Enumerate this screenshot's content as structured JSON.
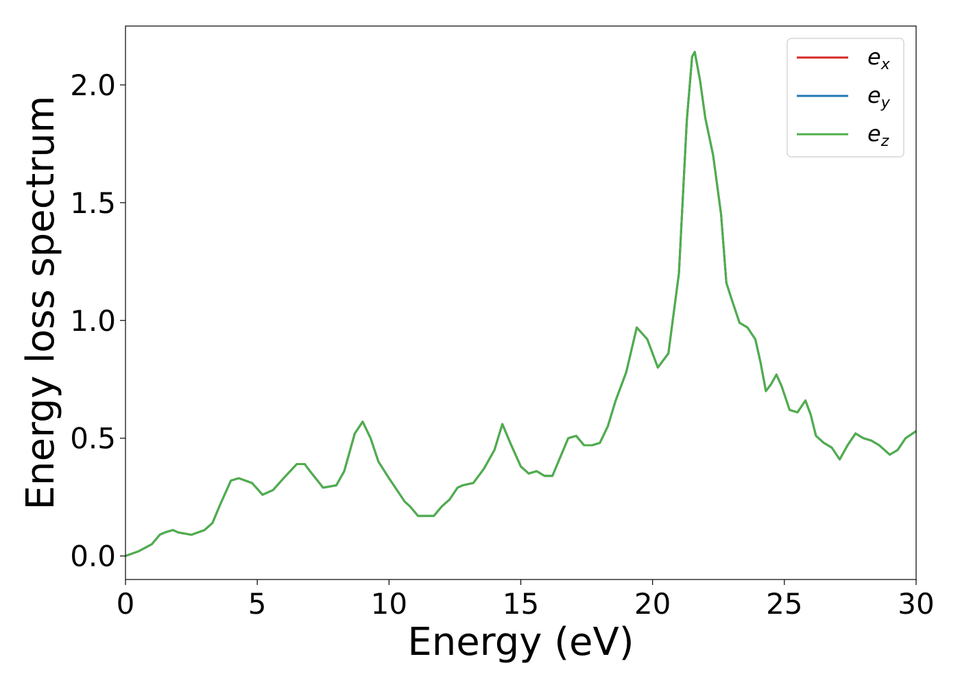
{
  "chart_data": {
    "type": "line",
    "xlabel": "Energy (eV)",
    "ylabel": "Energy loss spectrum",
    "xlim": [
      0,
      30
    ],
    "ylim": [
      -0.1,
      2.25
    ],
    "xticks": [
      0,
      5,
      10,
      15,
      20,
      25,
      30
    ],
    "xtick_labels": [
      "0",
      "5",
      "10",
      "15",
      "20",
      "25",
      "30"
    ],
    "yticks": [
      0.0,
      0.5,
      1.0,
      1.5,
      2.0
    ],
    "ytick_labels": [
      "0.0",
      "0.5",
      "1.0",
      "1.5",
      "2.0"
    ],
    "grid": false,
    "legend_position": "top-right",
    "x": [
      0,
      0.5,
      1.0,
      1.3,
      1.5,
      1.8,
      2.0,
      2.5,
      3.0,
      3.3,
      3.6,
      4.0,
      4.3,
      4.8,
      5.2,
      5.6,
      6.0,
      6.5,
      6.8,
      7.0,
      7.5,
      8.0,
      8.3,
      8.7,
      9.0,
      9.3,
      9.6,
      10.0,
      10.3,
      10.6,
      10.8,
      11.1,
      11.4,
      11.7,
      12.0,
      12.3,
      12.6,
      12.8,
      13.2,
      13.6,
      14.0,
      14.3,
      14.6,
      15.0,
      15.3,
      15.6,
      15.9,
      16.2,
      16.5,
      16.8,
      17.1,
      17.4,
      17.7,
      18.0,
      18.3,
      18.6,
      19.0,
      19.4,
      19.8,
      20.2,
      20.6,
      21.0,
      21.3,
      21.5,
      21.6,
      21.8,
      22.0,
      22.3,
      22.6,
      22.8,
      23.0,
      23.3,
      23.6,
      23.9,
      24.1,
      24.3,
      24.5,
      24.7,
      24.9,
      25.2,
      25.5,
      25.8,
      26.0,
      26.2,
      26.5,
      26.8,
      27.1,
      27.4,
      27.7,
      28.0,
      28.3,
      28.6,
      29.0,
      29.3,
      29.6,
      30.0
    ],
    "series": [
      {
        "name": "e_x",
        "color": "#d62728",
        "y": [
          0,
          0.02,
          0.05,
          0.09,
          0.1,
          0.11,
          0.1,
          0.09,
          0.11,
          0.14,
          0.22,
          0.32,
          0.33,
          0.31,
          0.26,
          0.28,
          0.33,
          0.39,
          0.39,
          0.36,
          0.29,
          0.3,
          0.36,
          0.52,
          0.57,
          0.5,
          0.4,
          0.33,
          0.28,
          0.23,
          0.21,
          0.17,
          0.17,
          0.17,
          0.21,
          0.24,
          0.29,
          0.3,
          0.31,
          0.37,
          0.45,
          0.56,
          0.48,
          0.38,
          0.35,
          0.36,
          0.34,
          0.34,
          0.42,
          0.5,
          0.51,
          0.47,
          0.47,
          0.48,
          0.55,
          0.66,
          0.78,
          0.97,
          0.92,
          0.8,
          0.86,
          1.2,
          1.85,
          2.12,
          2.14,
          2.02,
          1.86,
          1.7,
          1.45,
          1.16,
          1.09,
          0.99,
          0.97,
          0.92,
          0.82,
          0.7,
          0.73,
          0.77,
          0.72,
          0.62,
          0.61,
          0.66,
          0.6,
          0.51,
          0.48,
          0.46,
          0.41,
          0.47,
          0.52,
          0.5,
          0.49,
          0.47,
          0.43,
          0.45,
          0.5,
          0.53
        ]
      },
      {
        "name": "e_y",
        "color": "#1f77b4",
        "y": [
          0,
          0.02,
          0.05,
          0.09,
          0.1,
          0.11,
          0.1,
          0.09,
          0.11,
          0.14,
          0.22,
          0.32,
          0.33,
          0.31,
          0.26,
          0.28,
          0.33,
          0.39,
          0.39,
          0.36,
          0.29,
          0.3,
          0.36,
          0.52,
          0.57,
          0.5,
          0.4,
          0.33,
          0.28,
          0.23,
          0.21,
          0.17,
          0.17,
          0.17,
          0.21,
          0.24,
          0.29,
          0.3,
          0.31,
          0.37,
          0.45,
          0.56,
          0.48,
          0.38,
          0.35,
          0.36,
          0.34,
          0.34,
          0.42,
          0.5,
          0.51,
          0.47,
          0.47,
          0.48,
          0.55,
          0.66,
          0.78,
          0.97,
          0.92,
          0.8,
          0.86,
          1.2,
          1.85,
          2.12,
          2.14,
          2.02,
          1.86,
          1.7,
          1.45,
          1.16,
          1.09,
          0.99,
          0.97,
          0.92,
          0.82,
          0.7,
          0.73,
          0.77,
          0.72,
          0.62,
          0.61,
          0.66,
          0.6,
          0.51,
          0.48,
          0.46,
          0.41,
          0.47,
          0.52,
          0.5,
          0.49,
          0.47,
          0.43,
          0.45,
          0.5,
          0.53
        ]
      },
      {
        "name": "e_z",
        "color": "#4daf4a",
        "y": [
          0,
          0.02,
          0.05,
          0.09,
          0.1,
          0.11,
          0.1,
          0.09,
          0.11,
          0.14,
          0.22,
          0.32,
          0.33,
          0.31,
          0.26,
          0.28,
          0.33,
          0.39,
          0.39,
          0.36,
          0.29,
          0.3,
          0.36,
          0.52,
          0.57,
          0.5,
          0.4,
          0.33,
          0.28,
          0.23,
          0.21,
          0.17,
          0.17,
          0.17,
          0.21,
          0.24,
          0.29,
          0.3,
          0.31,
          0.37,
          0.45,
          0.56,
          0.48,
          0.38,
          0.35,
          0.36,
          0.34,
          0.34,
          0.42,
          0.5,
          0.51,
          0.47,
          0.47,
          0.48,
          0.55,
          0.66,
          0.78,
          0.97,
          0.92,
          0.8,
          0.86,
          1.2,
          1.85,
          2.12,
          2.14,
          2.02,
          1.86,
          1.7,
          1.45,
          1.16,
          1.09,
          0.99,
          0.97,
          0.92,
          0.82,
          0.7,
          0.73,
          0.77,
          0.72,
          0.62,
          0.61,
          0.66,
          0.6,
          0.51,
          0.48,
          0.46,
          0.41,
          0.47,
          0.52,
          0.5,
          0.49,
          0.47,
          0.43,
          0.45,
          0.5,
          0.53
        ]
      }
    ],
    "legend": [
      {
        "base": "e",
        "sub": "x",
        "color": "#d62728"
      },
      {
        "base": "e",
        "sub": "y",
        "color": "#1f77b4"
      },
      {
        "base": "e",
        "sub": "z",
        "color": "#4daf4a"
      }
    ]
  }
}
